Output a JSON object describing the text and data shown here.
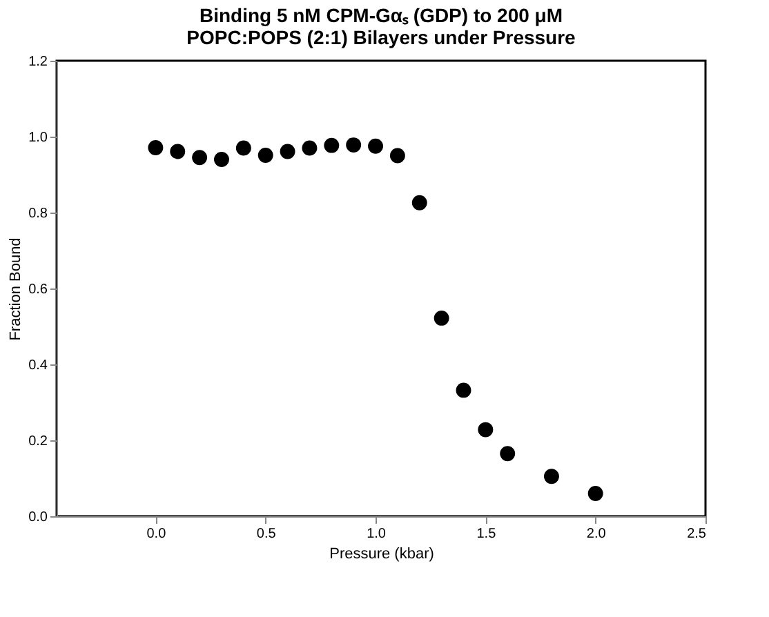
{
  "chart_data": {
    "type": "scatter",
    "title": [
      "Binding 5 nM CPM-Gαₛ (GDP) to 200 μM",
      "POPC:POPS (2:1) Bilayers under Pressure"
    ],
    "xlabel": "Pressure (kbar)",
    "ylabel": "Fraction Bound",
    "x": [
      0.0,
      0.1,
      0.2,
      0.3,
      0.4,
      0.5,
      0.6,
      0.7,
      0.8,
      0.9,
      1.0,
      1.1,
      1.2,
      1.3,
      1.4,
      1.5,
      1.6,
      1.8,
      2.0
    ],
    "series": [
      {
        "color": "#000000",
        "values": [
          0.971,
          0.961,
          0.945,
          0.94,
          0.97,
          0.951,
          0.961,
          0.97,
          0.977,
          0.978,
          0.975,
          0.95,
          0.826,
          0.522,
          0.332,
          0.228,
          0.165,
          0.105,
          0.06
        ]
      }
    ],
    "xlim": [
      -0.45,
      2.5
    ],
    "xticks": [
      {
        "value": 0,
        "label": "0.0"
      },
      0.5,
      {
        "value": 1,
        "label": "1.0"
      },
      1.5,
      {
        "value": 2,
        "label": "2.0"
      },
      2.5
    ],
    "ylim": [
      0.0,
      1.2
    ],
    "yticks": [
      {
        "value": 0,
        "label": "0.0"
      },
      0.2,
      0.4,
      0.6,
      0.8,
      {
        "value": 1,
        "label": "1.0"
      },
      1.2
    ],
    "marker": "circle",
    "grid": false,
    "legend": false
  }
}
